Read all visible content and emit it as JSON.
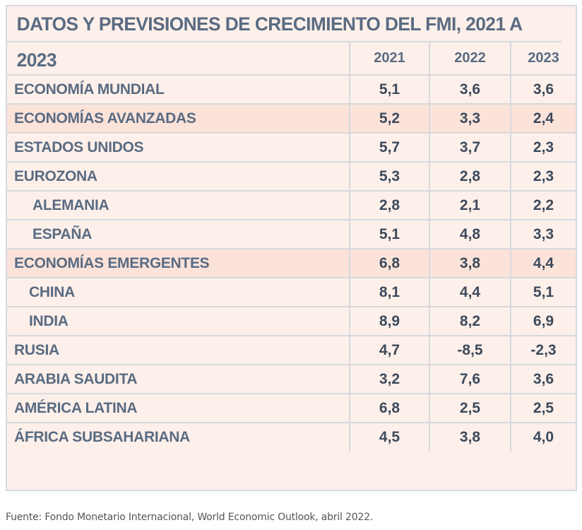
{
  "title": "DATOS Y PREVISIONES DE CRECIMIENTO DEL FMI, 2021 A 2023",
  "columns": [
    "",
    "2021",
    "2022",
    "2023"
  ],
  "rows": [
    {
      "label": "ECONOMÍA MUNDIAL",
      "v2021": "5,1",
      "v2022": "3,6",
      "v2023": "3,6"
    },
    {
      "label": "ECONOMÍAS AVANZADAS",
      "v2021": "5,2",
      "v2022": "3,3",
      "v2023": "2,4"
    },
    {
      "label": "ESTADOS UNIDOS",
      "v2021": "5,7",
      "v2022": "3,7",
      "v2023": "2,3"
    },
    {
      "label": "EUROZONA",
      "v2021": "5,3",
      "v2022": "2,8",
      "v2023": "2,3"
    },
    {
      "label": "ALEMANIA",
      "v2021": "2,8",
      "v2022": "2,1",
      "v2023": "2,2"
    },
    {
      "label": "ESPAÑA",
      "v2021": "5,1",
      "v2022": "4,8",
      "v2023": "3,3"
    },
    {
      "label": "ECONOMÍAS EMERGENTES",
      "v2021": "6,8",
      "v2022": "3,8",
      "v2023": "4,4"
    },
    {
      "label": "CHINA",
      "v2021": "8,1",
      "v2022": "4,4",
      "v2023": "5,1"
    },
    {
      "label": "INDIA",
      "v2021": "8,9",
      "v2022": "8,2",
      "v2023": "6,9"
    },
    {
      "label": "RUSIA",
      "v2021": "4,7",
      "v2022": "-8,5",
      "v2023": "-2,3"
    },
    {
      "label": "ARABIA SAUDITA",
      "v2021": "3,2",
      "v2022": "7,6",
      "v2023": "3,6"
    },
    {
      "label": "AMÉRICA LATINA",
      "v2021": "6,8",
      "v2022": "2,5",
      "v2023": "2,5"
    },
    {
      "label": "ÁFRICA SUBSAHARIANA",
      "v2021": "4,5",
      "v2022": "3,8",
      "v2023": "4,0"
    }
  ],
  "source": "Fuente: Fondo Monetario Internacional, World Economic Outlook, abril 2022.",
  "colors": {
    "text": "#5a6b82",
    "background": "#fdf0ea",
    "highlight": "#fbe3da",
    "border": "#d6d9de"
  }
}
